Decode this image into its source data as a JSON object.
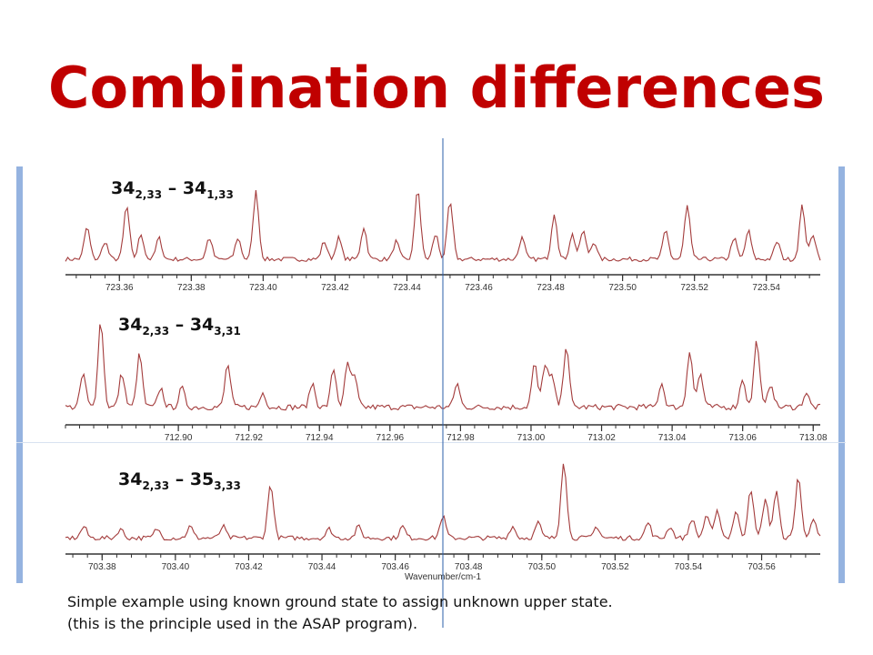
{
  "title": "Combination differences",
  "colors": {
    "title": "#c00000",
    "trace": "#a33b3b",
    "guide": "#2b5fa8",
    "bars": "#95b3e0"
  },
  "caption": {
    "line1": "Simple example using known ground state to assign unknown upper state.",
    "line2": "(this is the principle used in the ASAP program)."
  },
  "chart_data": [
    {
      "type": "line",
      "label": {
        "base1": "34",
        "sub1": "2,33",
        "dash": "–",
        "base2": "34",
        "sub2": "1,33"
      },
      "xlabel": "",
      "xlim": [
        723.345,
        723.555
      ],
      "ticks": [
        "723.36",
        "723.38",
        "723.40",
        "723.42",
        "723.44",
        "723.46",
        "723.48",
        "723.50",
        "723.52",
        "723.54"
      ],
      "peaks": [
        {
          "x": 723.351,
          "h": 0.45
        },
        {
          "x": 723.356,
          "h": 0.25
        },
        {
          "x": 723.362,
          "h": 0.75
        },
        {
          "x": 723.366,
          "h": 0.35
        },
        {
          "x": 723.371,
          "h": 0.3
        },
        {
          "x": 723.385,
          "h": 0.3
        },
        {
          "x": 723.393,
          "h": 0.3
        },
        {
          "x": 723.398,
          "h": 0.95
        },
        {
          "x": 723.417,
          "h": 0.25
        },
        {
          "x": 723.421,
          "h": 0.3
        },
        {
          "x": 723.428,
          "h": 0.45
        },
        {
          "x": 723.437,
          "h": 0.25
        },
        {
          "x": 723.443,
          "h": 1.0
        },
        {
          "x": 723.448,
          "h": 0.35
        },
        {
          "x": 723.452,
          "h": 0.8
        },
        {
          "x": 723.472,
          "h": 0.3
        },
        {
          "x": 723.481,
          "h": 0.65
        },
        {
          "x": 723.486,
          "h": 0.35
        },
        {
          "x": 723.489,
          "h": 0.4
        },
        {
          "x": 723.492,
          "h": 0.25
        },
        {
          "x": 723.512,
          "h": 0.4
        },
        {
          "x": 723.518,
          "h": 0.75
        },
        {
          "x": 723.531,
          "h": 0.3
        },
        {
          "x": 723.535,
          "h": 0.4
        },
        {
          "x": 723.543,
          "h": 0.25
        },
        {
          "x": 723.55,
          "h": 0.75
        },
        {
          "x": 723.553,
          "h": 0.35
        }
      ]
    },
    {
      "type": "line",
      "label": {
        "base1": "34",
        "sub1": "2,33",
        "dash": "–",
        "base2": "34",
        "sub2": "3,31"
      },
      "xlabel": "",
      "xlim": [
        712.868,
        713.082
      ],
      "ticks": [
        "712.90",
        "712.92",
        "712.94",
        "712.96",
        "712.98",
        "713.00",
        "713.02",
        "713.04",
        "713.06",
        "713.08"
      ],
      "peaks": [
        {
          "x": 712.873,
          "h": 0.35
        },
        {
          "x": 712.878,
          "h": 0.9
        },
        {
          "x": 712.884,
          "h": 0.35
        },
        {
          "x": 712.889,
          "h": 0.55
        },
        {
          "x": 712.895,
          "h": 0.2
        },
        {
          "x": 712.901,
          "h": 0.2
        },
        {
          "x": 712.914,
          "h": 0.45
        },
        {
          "x": 712.924,
          "h": 0.15
        },
        {
          "x": 712.938,
          "h": 0.25
        },
        {
          "x": 712.944,
          "h": 0.4
        },
        {
          "x": 712.948,
          "h": 0.45
        },
        {
          "x": 712.95,
          "h": 0.3
        },
        {
          "x": 712.979,
          "h": 0.25
        },
        {
          "x": 713.001,
          "h": 0.45
        },
        {
          "x": 713.004,
          "h": 0.45
        },
        {
          "x": 713.006,
          "h": 0.3
        },
        {
          "x": 713.01,
          "h": 0.65
        },
        {
          "x": 713.037,
          "h": 0.25
        },
        {
          "x": 713.045,
          "h": 0.6
        },
        {
          "x": 713.048,
          "h": 0.35
        },
        {
          "x": 713.06,
          "h": 0.3
        },
        {
          "x": 713.064,
          "h": 0.7
        },
        {
          "x": 713.068,
          "h": 0.25
        },
        {
          "x": 713.078,
          "h": 0.15
        }
      ]
    },
    {
      "type": "line",
      "label": {
        "base1": "34",
        "sub1": "2,33",
        "dash": "–",
        "base2": "35",
        "sub2": "3,33"
      },
      "xlabel": "Wavenumber/cm-1",
      "xlim": [
        703.37,
        703.576
      ],
      "ticks": [
        "703.38",
        "703.40",
        "703.42",
        "703.44",
        "703.46",
        "703.48",
        "703.50",
        "703.52",
        "703.54",
        "703.56"
      ],
      "peaks": [
        {
          "x": 703.375,
          "h": 0.15
        },
        {
          "x": 703.385,
          "h": 0.12
        },
        {
          "x": 703.395,
          "h": 0.12
        },
        {
          "x": 703.404,
          "h": 0.15
        },
        {
          "x": 703.413,
          "h": 0.15
        },
        {
          "x": 703.426,
          "h": 0.7
        },
        {
          "x": 703.442,
          "h": 0.12
        },
        {
          "x": 703.45,
          "h": 0.15
        },
        {
          "x": 703.462,
          "h": 0.15
        },
        {
          "x": 703.473,
          "h": 0.28
        },
        {
          "x": 703.492,
          "h": 0.15
        },
        {
          "x": 703.499,
          "h": 0.2
        },
        {
          "x": 703.506,
          "h": 1.0
        },
        {
          "x": 703.515,
          "h": 0.15
        },
        {
          "x": 703.529,
          "h": 0.2
        },
        {
          "x": 703.535,
          "h": 0.15
        },
        {
          "x": 703.541,
          "h": 0.25
        },
        {
          "x": 703.545,
          "h": 0.3
        },
        {
          "x": 703.548,
          "h": 0.35
        },
        {
          "x": 703.553,
          "h": 0.35
        },
        {
          "x": 703.557,
          "h": 0.65
        },
        {
          "x": 703.561,
          "h": 0.5
        },
        {
          "x": 703.564,
          "h": 0.6
        },
        {
          "x": 703.57,
          "h": 0.8
        },
        {
          "x": 703.574,
          "h": 0.25
        }
      ]
    }
  ]
}
